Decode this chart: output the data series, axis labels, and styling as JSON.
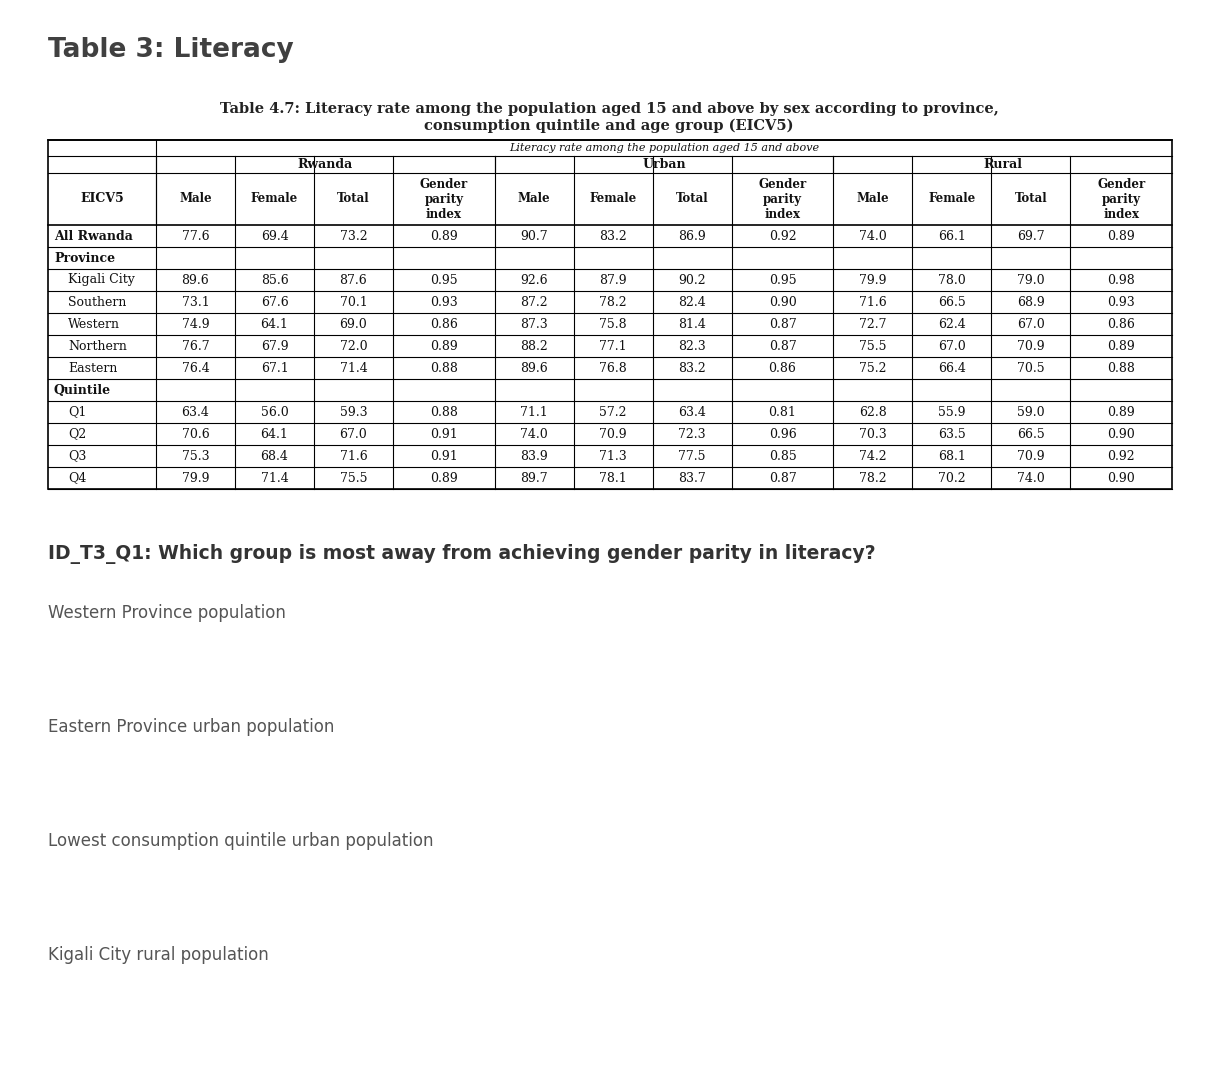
{
  "page_title": "Table 3: Literacy",
  "table_caption_line1": "Table 4.7: Literacy rate among the population aged 15 and above by sex according to province,",
  "table_caption_line2": "consumption quintile and age group (EICV5)",
  "top_header": "Literacy rate among the population aged 15 and above",
  "col_groups": [
    "Rwanda",
    "Urban",
    "Rural"
  ],
  "rows": [
    {
      "label": "All Rwanda",
      "indent": 0,
      "bold": true,
      "section_only": false,
      "data": [
        "77.6",
        "69.4",
        "73.2",
        "0.89",
        "90.7",
        "83.2",
        "86.9",
        "0.92",
        "74.0",
        "66.1",
        "69.7",
        "0.89"
      ]
    },
    {
      "label": "Province",
      "indent": 0,
      "bold": true,
      "section_only": true,
      "data": null
    },
    {
      "label": "Kigali City",
      "indent": 1,
      "bold": false,
      "section_only": false,
      "data": [
        "89.6",
        "85.6",
        "87.6",
        "0.95",
        "92.6",
        "87.9",
        "90.2",
        "0.95",
        "79.9",
        "78.0",
        "79.0",
        "0.98"
      ]
    },
    {
      "label": "Southern",
      "indent": 1,
      "bold": false,
      "section_only": false,
      "data": [
        "73.1",
        "67.6",
        "70.1",
        "0.93",
        "87.2",
        "78.2",
        "82.4",
        "0.90",
        "71.6",
        "66.5",
        "68.9",
        "0.93"
      ]
    },
    {
      "label": "Western",
      "indent": 1,
      "bold": false,
      "section_only": false,
      "data": [
        "74.9",
        "64.1",
        "69.0",
        "0.86",
        "87.3",
        "75.8",
        "81.4",
        "0.87",
        "72.7",
        "62.4",
        "67.0",
        "0.86"
      ]
    },
    {
      "label": "Northern",
      "indent": 1,
      "bold": false,
      "section_only": false,
      "data": [
        "76.7",
        "67.9",
        "72.0",
        "0.89",
        "88.2",
        "77.1",
        "82.3",
        "0.87",
        "75.5",
        "67.0",
        "70.9",
        "0.89"
      ]
    },
    {
      "label": "Eastern",
      "indent": 1,
      "bold": false,
      "section_only": false,
      "data": [
        "76.4",
        "67.1",
        "71.4",
        "0.88",
        "89.6",
        "76.8",
        "83.2",
        "0.86",
        "75.2",
        "66.4",
        "70.5",
        "0.88"
      ]
    },
    {
      "label": "Quintile",
      "indent": 0,
      "bold": true,
      "section_only": true,
      "data": null
    },
    {
      "label": "Q1",
      "indent": 1,
      "bold": false,
      "section_only": false,
      "data": [
        "63.4",
        "56.0",
        "59.3",
        "0.88",
        "71.1",
        "57.2",
        "63.4",
        "0.81",
        "62.8",
        "55.9",
        "59.0",
        "0.89"
      ]
    },
    {
      "label": "Q2",
      "indent": 1,
      "bold": false,
      "section_only": false,
      "data": [
        "70.6",
        "64.1",
        "67.0",
        "0.91",
        "74.0",
        "70.9",
        "72.3",
        "0.96",
        "70.3",
        "63.5",
        "66.5",
        "0.90"
      ]
    },
    {
      "label": "Q3",
      "indent": 1,
      "bold": false,
      "section_only": false,
      "data": [
        "75.3",
        "68.4",
        "71.6",
        "0.91",
        "83.9",
        "71.3",
        "77.5",
        "0.85",
        "74.2",
        "68.1",
        "70.9",
        "0.92"
      ]
    },
    {
      "label": "Q4",
      "indent": 1,
      "bold": false,
      "section_only": false,
      "data": [
        "79.9",
        "71.4",
        "75.5",
        "0.89",
        "89.7",
        "78.1",
        "83.7",
        "0.87",
        "78.2",
        "70.2",
        "74.0",
        "0.90"
      ]
    }
  ],
  "question": "ID_T3_Q1: Which group is most away from achieving gender parity in literacy?",
  "options": [
    "Western Province population",
    "Eastern Province urban population",
    "Lowest consumption quintile urban population",
    "Kigali City rural population"
  ],
  "bg_color": "#ffffff",
  "title_color": "#404040",
  "caption_color": "#222222",
  "table_text_color": "#111111",
  "question_color": "#333333",
  "option_color": "#555555"
}
